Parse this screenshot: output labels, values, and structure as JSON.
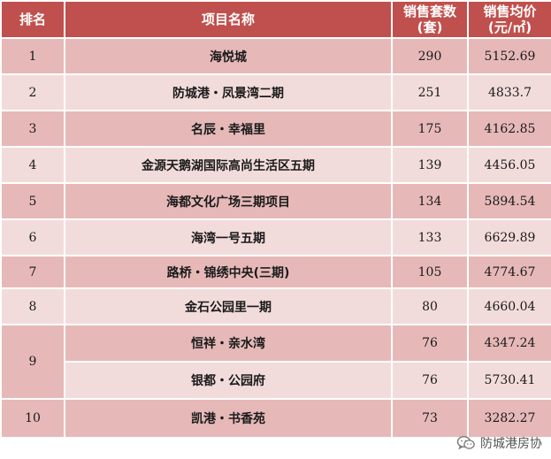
{
  "table": {
    "headers": {
      "rank": "排名",
      "name": "项目名称",
      "units_line1": "销售套数",
      "units_line2": "(套)",
      "price_line1": "销售均价",
      "price_line2": "(元/㎡)"
    },
    "rows": [
      {
        "rank": "1",
        "name": "海悦城",
        "units": "290",
        "price": "5152.69"
      },
      {
        "rank": "2",
        "name": "防城港・凤景湾二期",
        "units": "251",
        "price": "4833.7"
      },
      {
        "rank": "3",
        "name": "名辰・幸福里",
        "units": "175",
        "price": "4162.85"
      },
      {
        "rank": "4",
        "name": "金源天鹅湖国际高尚生活区五期",
        "units": "139",
        "price": "4456.05"
      },
      {
        "rank": "5",
        "name": "海都文化广场三期项目",
        "units": "134",
        "price": "5894.54"
      },
      {
        "rank": "6",
        "name": "海湾一号五期",
        "units": "133",
        "price": "6629.89"
      },
      {
        "rank": "7",
        "name": "路桥・锦绣中央(三期)",
        "units": "105",
        "price": "4774.67"
      },
      {
        "rank": "8",
        "name": "金石公园里一期",
        "units": "80",
        "price": "4660.04"
      },
      {
        "rank": "9",
        "name": "恒祥・亲水湾",
        "units": "76",
        "price": "4347.24"
      },
      {
        "rank": "",
        "name": "银都・公园府",
        "units": "76",
        "price": "5730.41"
      },
      {
        "rank": "10",
        "name": "凯港・书香苑",
        "units": "73",
        "price": "3282.27"
      }
    ]
  },
  "watermark": {
    "icon": "wechat-icon",
    "text": "防城港房协"
  },
  "colors": {
    "header": "#c0504d",
    "row_dark": "#e6b9b8",
    "row_light": "#f2dcdb"
  }
}
